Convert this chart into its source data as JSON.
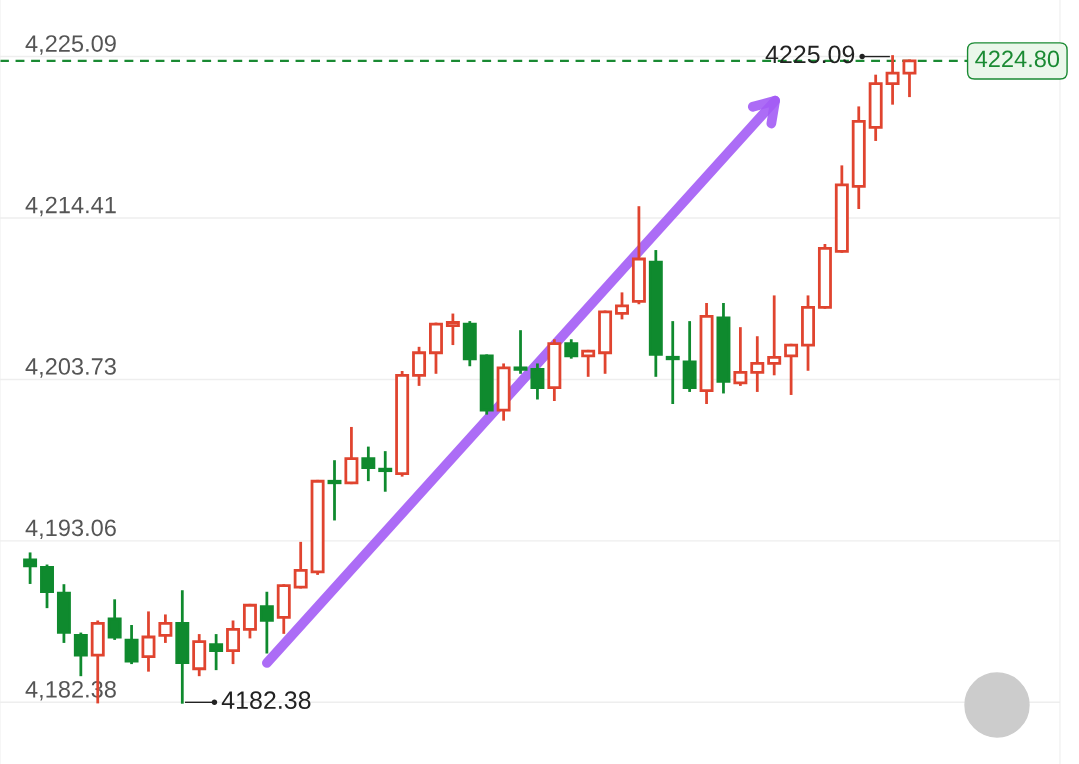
{
  "chart_data": {
    "type": "candlestick",
    "categories": [
      null,
      null,
      null,
      null,
      null,
      null,
      null,
      null,
      null,
      null,
      null,
      null,
      null,
      null,
      null,
      null,
      null,
      null,
      null,
      null,
      null,
      null,
      null,
      null,
      null,
      null,
      null,
      null,
      null,
      null,
      null,
      null,
      null,
      null,
      null,
      null,
      null,
      null,
      null,
      null,
      null,
      null,
      null,
      null,
      null,
      null,
      null,
      null,
      null,
      null,
      null,
      null,
      null
    ],
    "ohlc": [
      [
        4191.8,
        4192.2,
        4190.3,
        4191.4
      ],
      [
        4191.3,
        4191.4,
        4188.7,
        4189.7
      ],
      [
        4189.6,
        4190.1,
        4186.4,
        4187.0
      ],
      [
        4186.8,
        4186.9,
        4184.2,
        4185.5
      ],
      [
        4185.5,
        4187.7,
        4182.4,
        4187.6
      ],
      [
        4187.9,
        4189.1,
        4186.6,
        4186.7
      ],
      [
        4186.5,
        4187.4,
        4185.0,
        4185.1
      ],
      [
        4185.4,
        4188.3,
        4184.5,
        4186.7
      ],
      [
        4186.8,
        4188.1,
        4186.4,
        4187.6
      ],
      [
        4187.6,
        4189.7,
        4182.38,
        4185.0
      ],
      [
        4184.6,
        4186.8,
        4184.2,
        4186.4
      ],
      [
        4186.2,
        4186.8,
        4184.6,
        4185.8
      ],
      [
        4185.8,
        4187.7,
        4185.0,
        4187.2
      ],
      [
        4187.2,
        4188.8,
        4186.7,
        4188.8
      ],
      [
        4188.7,
        4189.6,
        4185.7,
        4187.8
      ],
      [
        4188.0,
        4190.1,
        4187.0,
        4190.1
      ],
      [
        4190.0,
        4192.9,
        4190.0,
        4191.1
      ],
      [
        4191.0,
        4197.0,
        4190.9,
        4197.0
      ],
      [
        4197.0,
        4198.3,
        4194.5,
        4196.9
      ],
      [
        4196.9,
        4200.5,
        4196.9,
        4198.5
      ],
      [
        4198.5,
        4199.2,
        4197.1,
        4197.9
      ],
      [
        4197.8,
        4198.9,
        4196.4,
        4197.7
      ],
      [
        4197.5,
        4204.2,
        4197.4,
        4204.0
      ],
      [
        4204.0,
        4205.8,
        4203.4,
        4205.5
      ],
      [
        4205.5,
        4207.4,
        4204.2,
        4207.4
      ],
      [
        4207.3,
        4208.0,
        4206.1,
        4207.5
      ],
      [
        4207.4,
        4207.5,
        4204.7,
        4205.1
      ],
      [
        4205.3,
        4205.3,
        4201.5,
        4201.7
      ],
      [
        4201.7,
        4204.7,
        4201.1,
        4204.5
      ],
      [
        4204.5,
        4206.9,
        4204.2,
        4204.4
      ],
      [
        4204.4,
        4204.7,
        4202.5,
        4203.2
      ],
      [
        4203.2,
        4206.3,
        4202.4,
        4206.1
      ],
      [
        4206.1,
        4206.3,
        4205.2,
        4205.3
      ],
      [
        4205.3,
        4205.6,
        4204.0,
        4205.6
      ],
      [
        4205.5,
        4208.2,
        4204.2,
        4208.2
      ],
      [
        4208.1,
        4209.4,
        4207.8,
        4208.6
      ],
      [
        4208.9,
        4215.1,
        4208.8,
        4211.7
      ],
      [
        4211.5,
        4212.2,
        4204.0,
        4205.4
      ],
      [
        4205.2,
        4207.5,
        4202.2,
        4205.1
      ],
      [
        4204.9,
        4207.5,
        4203.0,
        4203.2
      ],
      [
        4203.0,
        4208.7,
        4202.2,
        4207.9
      ],
      [
        4207.8,
        4208.7,
        4202.9,
        4203.6
      ],
      [
        4203.5,
        4207.1,
        4203.4,
        4204.2
      ],
      [
        4204.2,
        4206.5,
        4203.0,
        4204.8
      ],
      [
        4204.8,
        4209.2,
        4204.1,
        4205.2
      ],
      [
        4205.3,
        4206.0,
        4202.8,
        4206.0
      ],
      [
        4206.0,
        4209.2,
        4204.4,
        4208.5
      ],
      [
        4208.5,
        4212.6,
        4208.5,
        4212.4
      ],
      [
        4212.2,
        4217.8,
        4212.2,
        4216.6
      ],
      [
        4216.5,
        4221.7,
        4215.1,
        4220.8
      ],
      [
        4220.4,
        4223.8,
        4219.6,
        4223.3
      ],
      [
        4223.3,
        4225.09,
        4222.0,
        4224.0
      ],
      [
        4224.0,
        4224.8,
        4222.5,
        4224.8
      ]
    ],
    "colors": [
      "#0f8a2e",
      "#0f8a2e",
      "#0f8a2e",
      "#0f8a2e",
      "#e0442f",
      "#0f8a2e",
      "#0f8a2e",
      "#e0442f",
      "#e0442f",
      "#0f8a2e",
      "#e0442f",
      "#0f8a2e",
      "#e0442f",
      "#e0442f",
      "#0f8a2e",
      "#e0442f",
      "#e0442f",
      "#e0442f",
      "#0f8a2e",
      "#e0442f",
      "#0f8a2e",
      "#0f8a2e",
      "#e0442f",
      "#e0442f",
      "#e0442f",
      "#e0442f",
      "#0f8a2e",
      "#0f8a2e",
      "#e0442f",
      "#0f8a2e",
      "#0f8a2e",
      "#e0442f",
      "#0f8a2e",
      "#e0442f",
      "#e0442f",
      "#e0442f",
      "#e0442f",
      "#0f8a2e",
      "#0f8a2e",
      "#0f8a2e",
      "#e0442f",
      "#0f8a2e",
      "#e0442f",
      "#e0442f",
      "#e0442f",
      "#e0442f",
      "#e0442f",
      "#e0442f",
      "#e0442f",
      "#e0442f",
      "#e0442f",
      "#e0442f",
      "#e0442f"
    ],
    "ylim": [
      4178.3,
      4228.83
    ],
    "yticks": [
      {
        "value": 4182.38,
        "label": "4,182.38"
      },
      {
        "value": 4193.06,
        "label": "4,193.06"
      },
      {
        "value": 4203.73,
        "label": "4,203.73"
      },
      {
        "value": 4214.41,
        "label": "4,214.41"
      },
      {
        "value": 4225.09,
        "label": "4,225.09"
      }
    ],
    "grid": "y",
    "ref_lines": [
      {
        "axis": "y",
        "value": 4224.8,
        "label": "4224.80",
        "color": "#1a8a33",
        "line_style": "dashed"
      }
    ],
    "annotations": [
      "4225.09",
      "4182.38"
    ]
  }
}
